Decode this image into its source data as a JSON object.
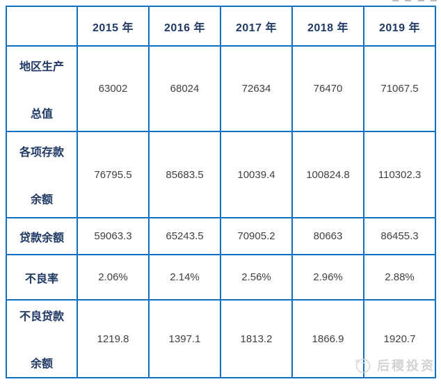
{
  "chart_data": {
    "type": "table",
    "title": "",
    "columns": [
      "",
      "2015 年",
      "2016 年",
      "2017 年",
      "2018 年",
      "2019 年"
    ],
    "rows": [
      {
        "label": "地区生产总值",
        "label_lines": [
          "地区生产",
          "总值"
        ],
        "values": [
          "63002",
          "68024",
          "72634",
          "76470",
          "71067.5"
        ]
      },
      {
        "label": "各项存款余额",
        "label_lines": [
          "各项存款",
          "余额"
        ],
        "values": [
          "76795.5",
          "85683.5",
          "10039.4",
          "100824.8",
          "110302.3"
        ]
      },
      {
        "label": "贷款余额",
        "label_lines": [
          "贷款余额"
        ],
        "values": [
          "59063.3",
          "65243.5",
          "70905.2",
          "80663",
          "86455.3"
        ]
      },
      {
        "label": "不良率",
        "label_lines": [
          "不良率"
        ],
        "values": [
          "2.06%",
          "2.14%",
          "2.56%",
          "2.96%",
          "2.88%"
        ]
      },
      {
        "label": "不良贷款余额",
        "label_lines": [
          "不良贷款",
          "余额"
        ],
        "values": [
          "1219.8",
          "1397.1",
          "1813.2",
          "1866.9",
          "1920.7"
        ]
      }
    ]
  },
  "watermark": {
    "text": "后稷投资",
    "logo": "dove-circle-logo"
  },
  "colors": {
    "table_border": "#0d70c0",
    "header_text": "#1f3864",
    "value_text": "#3f3f3f",
    "watermark_text": "#d3d3d3"
  }
}
